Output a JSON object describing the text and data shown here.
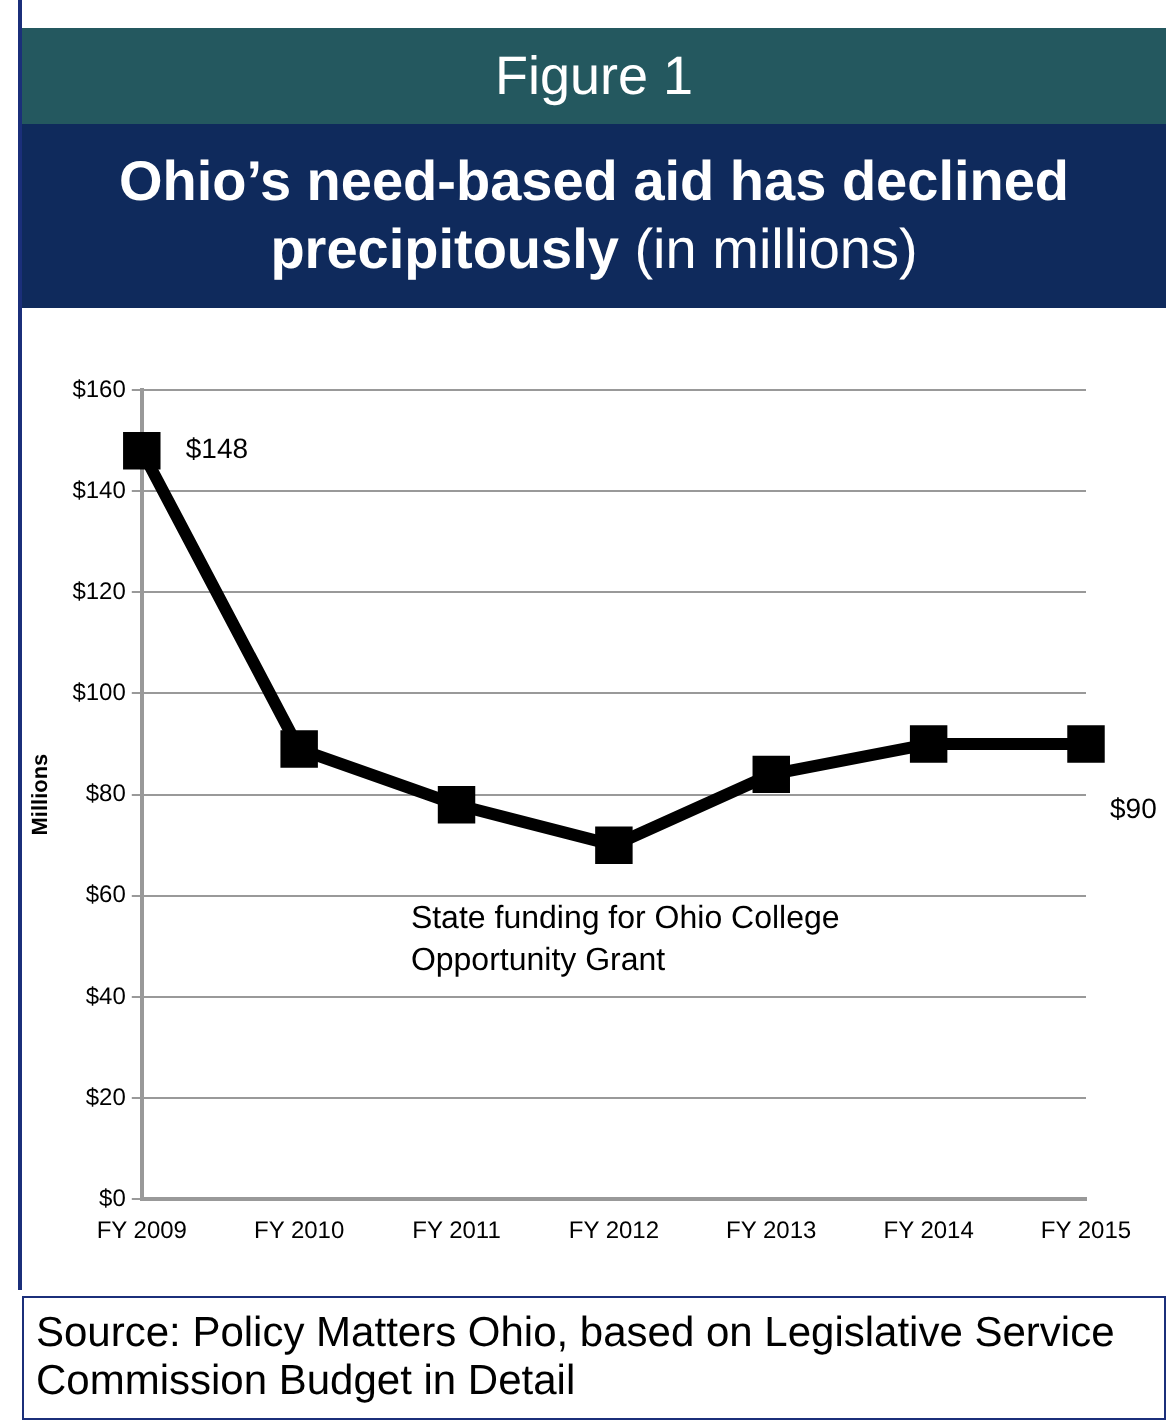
{
  "chart_data": {
    "type": "line",
    "title": "Figure 1",
    "subtitle": "Ohio’s need-based aid has declined precipitously (in millions)",
    "ylabel": "Millions",
    "categories": [
      "FY 2009",
      "FY 2010",
      "FY 2011",
      "FY 2012",
      "FY 2013",
      "FY 2014",
      "FY 2015"
    ],
    "series": [
      {
        "name": "State funding for Ohio College Opportunity Grant",
        "color": "#000000",
        "values": [
          148,
          89,
          78,
          70,
          84,
          90,
          90
        ],
        "value_labels": [
          "$148",
          null,
          null,
          null,
          null,
          null,
          "$90"
        ]
      }
    ],
    "ylim": [
      0,
      160
    ],
    "yticks": [
      {
        "value": 0,
        "label": "$0"
      },
      {
        "value": 20,
        "label": "$20"
      },
      {
        "value": 40,
        "label": "$40"
      },
      {
        "value": 60,
        "label": "$60"
      },
      {
        "value": 80,
        "label": "$80"
      },
      {
        "value": 100,
        "label": "$100"
      },
      {
        "value": 120,
        "label": "$120"
      },
      {
        "value": 140,
        "label": "$140"
      },
      {
        "value": 160,
        "label": "$160"
      }
    ],
    "grid": "y",
    "legend": false,
    "marker": "square",
    "line_style": "solid",
    "annotations": [
      "Source:  Policy Matters Ohio, based on Legislative Service Commission Budget in Detail"
    ]
  }
}
